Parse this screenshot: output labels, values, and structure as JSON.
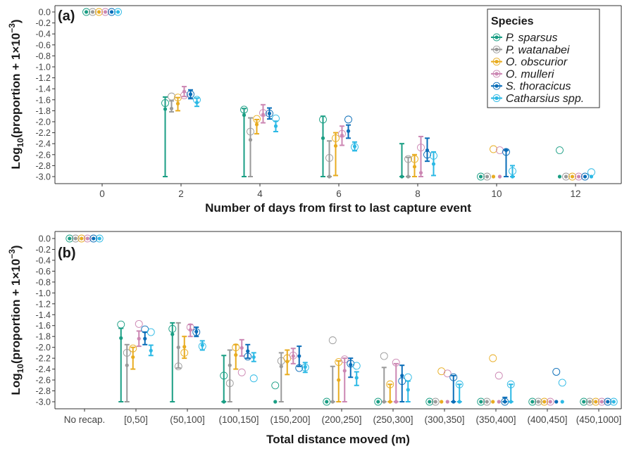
{
  "chart_data": [
    {
      "type": "scatter",
      "panel_label": "(a)",
      "xlabel": "Number of days from first to last capture event",
      "ylabel": "Log10(proportion + 1×10^-3)",
      "ylim": [
        -3.1,
        0.0
      ],
      "yticks": [
        "0.0",
        "-0.2",
        "-0.4",
        "-0.6",
        "-0.8",
        "-1.0",
        "-1.2",
        "-1.4",
        "-1.6",
        "-1.8",
        "-2.0",
        "-2.2",
        "-2.4",
        "-2.6",
        "-2.8",
        "-3.0"
      ],
      "categories": [
        "0",
        "2",
        "4",
        "6",
        "8",
        "10",
        "12"
      ],
      "grid": false,
      "legend": {
        "title": "Species",
        "placement": "top-right",
        "entries": [
          "P. sparsus",
          "P. watanabei",
          "O. obscurior",
          "O. mulleri",
          "S. thoracicus",
          "Catharsius spp."
        ]
      },
      "series": [
        {
          "name": "P. sparsus",
          "color": "#1a9e84",
          "mean": [
            0.0,
            -1.77,
            -1.88,
            -2.3,
            -3.0,
            -3.0,
            -3.0
          ],
          "low": [
            0.0,
            -3.0,
            -3.0,
            -3.0,
            -3.0,
            -3.0,
            -3.0
          ],
          "high": [
            0.0,
            -1.55,
            -1.76,
            -1.9,
            -2.4,
            -3.0,
            -3.0
          ],
          "observed": [
            0.0,
            -1.66,
            -1.78,
            -1.96,
            null,
            -3.0,
            -2.52
          ]
        },
        {
          "name": "P. watanabei",
          "color": "#9a9a9a",
          "mean": [
            0.0,
            -1.76,
            -2.33,
            -3.0,
            -3.0,
            -3.0,
            -3.0
          ],
          "low": [
            0.0,
            -1.82,
            -3.0,
            -3.0,
            -3.0,
            -3.0,
            -3.0
          ],
          "high": [
            0.0,
            -1.62,
            -1.93,
            -2.35,
            -2.65,
            -3.0,
            -3.0
          ],
          "observed": [
            0.0,
            -1.54,
            -2.18,
            -2.66,
            -2.68,
            -3.0,
            -3.0
          ]
        },
        {
          "name": "O. obscurior",
          "color": "#e8ac20",
          "mean": [
            0.0,
            -1.67,
            -2.05,
            -2.44,
            -2.82,
            -3.0,
            -3.0
          ],
          "low": [
            0.0,
            -1.8,
            -2.22,
            -2.98,
            -3.0,
            -3.0,
            -3.0
          ],
          "high": [
            0.0,
            -1.56,
            -1.96,
            -2.2,
            -2.6,
            -3.0,
            -3.0
          ],
          "observed": [
            0.0,
            -1.56,
            -1.95,
            -2.3,
            -2.68,
            -2.5,
            -3.0
          ]
        },
        {
          "name": "O. mulleri",
          "color": "#cc87b3",
          "mean": [
            0.0,
            -1.45,
            -1.87,
            -2.25,
            -2.93,
            -3.0,
            -3.0
          ],
          "low": [
            0.0,
            -1.54,
            -2.02,
            -2.43,
            -3.0,
            -3.0,
            -3.0
          ],
          "high": [
            0.0,
            -1.36,
            -1.69,
            -2.08,
            -2.27,
            -3.0,
            -3.0
          ],
          "observed": [
            0.0,
            -1.52,
            -1.84,
            -2.22,
            -2.47,
            -2.52,
            -3.0
          ]
        },
        {
          "name": "S. thoracicus",
          "color": "#0a6db8",
          "mean": [
            0.0,
            -1.5,
            -1.85,
            -2.17,
            -2.52,
            -2.52,
            -3.0
          ],
          "low": [
            0.0,
            -1.58,
            -1.95,
            -2.3,
            -2.72,
            -3.0,
            -3.0
          ],
          "high": [
            0.0,
            -1.42,
            -1.75,
            -2.06,
            -2.3,
            -2.52,
            -3.0
          ],
          "observed": [
            0.0,
            -1.5,
            -1.85,
            -1.96,
            -2.6,
            -2.55,
            -3.0
          ]
        },
        {
          "name": "Catharsius spp.",
          "color": "#2cb9e5",
          "mean": [
            0.0,
            -1.65,
            -2.08,
            -2.45,
            -2.77,
            -3.0,
            -3.0
          ],
          "low": [
            0.0,
            -1.72,
            -2.18,
            -2.53,
            -2.98,
            -3.0,
            -3.0
          ],
          "high": [
            0.0,
            -1.57,
            -1.99,
            -2.37,
            -2.55,
            -2.8,
            -3.0
          ],
          "observed": [
            0.0,
            -1.6,
            -1.94,
            -2.46,
            -2.62,
            -2.9,
            -2.92
          ]
        }
      ]
    },
    {
      "type": "scatter",
      "panel_label": "(b)",
      "xlabel": "Total distance moved (m)",
      "ylabel": "Log10(proportion + 1×10^-3)",
      "ylim": [
        -3.1,
        0.0
      ],
      "yticks": [
        "0.0",
        "-0.2",
        "-0.4",
        "-0.6",
        "-0.8",
        "-1.0",
        "-1.2",
        "-1.4",
        "-1.6",
        "-1.8",
        "-2.0",
        "-2.2",
        "-2.4",
        "-2.6",
        "-2.8",
        "-3.0"
      ],
      "categories": [
        "No recap.",
        "[0,50]",
        "(50,100]",
        "(100,150]",
        "(150,200]",
        "(200,250]",
        "(250,300]",
        "(300,350]",
        "(350,400]",
        "(400,450]",
        "(450,1000]"
      ],
      "grid": false,
      "series": [
        {
          "name": "P. sparsus",
          "color": "#1a9e84",
          "mean": [
            0.0,
            -1.83,
            -1.76,
            -3.0,
            -3.0,
            -3.0,
            -3.0,
            -3.0,
            -3.0,
            -3.0,
            -3.0
          ],
          "low": [
            0.0,
            -3.0,
            -3.0,
            -3.0,
            -3.0,
            -3.0,
            -3.0,
            -3.0,
            -3.0,
            -3.0,
            -3.0
          ],
          "high": [
            0.0,
            -1.65,
            -1.55,
            -2.15,
            -3.0,
            -3.0,
            -3.0,
            -3.0,
            -3.0,
            -3.0,
            -3.0
          ],
          "observed": [
            0.0,
            -1.58,
            -1.66,
            -2.52,
            -2.7,
            -3.0,
            -3.0,
            -3.0,
            -3.0,
            -3.0,
            -3.0
          ]
        },
        {
          "name": "P. watanabei",
          "color": "#9a9a9a",
          "mean": [
            0.0,
            -2.33,
            -2.0,
            -2.33,
            -2.35,
            -3.0,
            -3.0,
            -3.0,
            -3.0,
            -3.0,
            -3.0
          ],
          "low": [
            0.0,
            -3.0,
            -2.38,
            -3.0,
            -3.0,
            -3.0,
            -3.0,
            -3.0,
            -3.0,
            -3.0,
            -3.0
          ],
          "high": [
            0.0,
            -1.95,
            -1.55,
            -2.05,
            -2.1,
            -2.35,
            -2.37,
            -3.0,
            -3.0,
            -3.0,
            -3.0
          ],
          "observed": [
            0.0,
            -2.1,
            -2.35,
            -2.66,
            -2.25,
            -1.87,
            -2.16,
            -3.0,
            -3.0,
            -3.0,
            -3.0
          ]
        },
        {
          "name": "O. obscurior",
          "color": "#e8ac20",
          "mean": [
            0.0,
            -2.18,
            -1.99,
            -2.14,
            -2.26,
            -2.6,
            -3.0,
            -3.0,
            -3.0,
            -3.0,
            -3.0
          ],
          "low": [
            0.0,
            -2.4,
            -2.2,
            -2.4,
            -2.5,
            -3.0,
            -3.0,
            -3.0,
            -3.0,
            -3.0,
            -3.0
          ],
          "high": [
            0.0,
            -2.0,
            -1.8,
            -1.95,
            -2.05,
            -2.25,
            -2.68,
            -3.0,
            -3.0,
            -3.0,
            -3.0
          ],
          "observed": [
            0.0,
            -2.02,
            -2.1,
            -2.0,
            -2.2,
            -2.27,
            -2.68,
            -2.44,
            -2.2,
            -3.0,
            -3.0
          ]
        },
        {
          "name": "O. mulleri",
          "color": "#cc87b3",
          "mean": [
            0.0,
            -1.84,
            -1.68,
            -2.01,
            -2.16,
            -2.43,
            -3.0,
            -3.0,
            -3.0,
            -3.0,
            -3.0
          ],
          "low": [
            0.0,
            -1.98,
            -1.8,
            -2.16,
            -2.3,
            -3.0,
            -3.0,
            -3.0,
            -3.0,
            -3.0,
            -3.0
          ],
          "high": [
            0.0,
            -1.7,
            -1.58,
            -1.86,
            -2.02,
            -2.2,
            -2.3,
            -3.0,
            -3.0,
            -3.0,
            -3.0
          ],
          "observed": [
            0.0,
            -1.57,
            -1.63,
            -2.46,
            -2.15,
            -2.22,
            -2.28,
            -2.48,
            -2.52,
            -3.0,
            -3.0
          ]
        },
        {
          "name": "S. thoracicus",
          "color": "#0a6db8",
          "mean": [
            0.0,
            -1.84,
            -1.71,
            -2.07,
            -2.16,
            -2.32,
            -2.52,
            -3.0,
            -3.0,
            -3.0,
            -3.0
          ],
          "low": [
            0.0,
            -1.95,
            -1.8,
            -2.2,
            -2.35,
            -2.55,
            -3.0,
            -3.0,
            -3.0,
            -3.0,
            -3.0
          ],
          "high": [
            0.0,
            -1.72,
            -1.63,
            -1.95,
            -1.98,
            -2.2,
            -2.33,
            -2.52,
            -2.92,
            -3.0,
            -3.0
          ],
          "observed": [
            0.0,
            -1.67,
            -1.72,
            -2.17,
            -2.38,
            -2.3,
            -2.62,
            -2.55,
            -3.0,
            -2.45,
            -3.0
          ]
        },
        {
          "name": "Catharsius spp.",
          "color": "#2cb9e5",
          "mean": [
            0.0,
            -2.06,
            -1.96,
            -2.18,
            -2.36,
            -2.56,
            -2.78,
            -3.0,
            -3.0,
            -3.0,
            -3.0
          ],
          "low": [
            0.0,
            -2.15,
            -2.05,
            -2.26,
            -2.46,
            -2.7,
            -3.0,
            -3.0,
            -3.0,
            -3.0,
            -3.0
          ],
          "high": [
            0.0,
            -1.96,
            -1.88,
            -2.1,
            -2.28,
            -2.45,
            -2.62,
            -2.68,
            -2.68,
            -3.0,
            -3.0
          ],
          "observed": [
            0.0,
            -1.72,
            -1.98,
            -2.57,
            -2.37,
            -2.34,
            -2.55,
            -2.68,
            -2.68,
            -2.65,
            -3.0
          ]
        }
      ]
    }
  ]
}
